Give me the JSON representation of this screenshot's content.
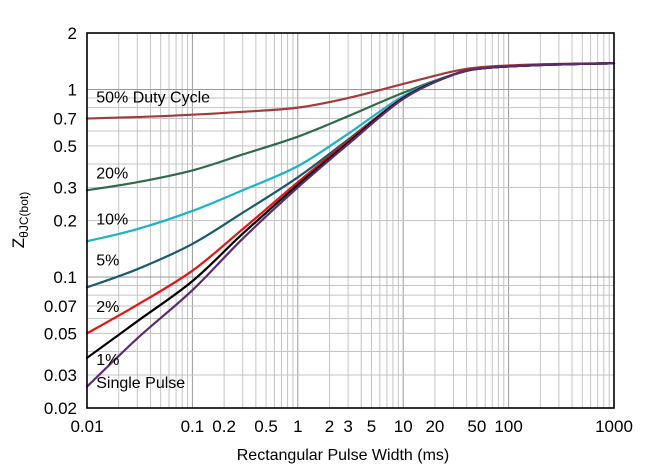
{
  "chart_data": {
    "type": "line",
    "title": "",
    "xlabel": "Rectangular Pulse Width (ms)",
    "ylabel_main": "Z",
    "ylabel_sub": "θJC(bot)",
    "xscale": "log",
    "yscale": "log",
    "xlim": [
      0.01,
      1000
    ],
    "ylim": [
      0.02,
      2
    ],
    "grid": true,
    "x_tick_labels": [
      {
        "v": 0.01,
        "t": "0.01"
      },
      {
        "v": 0.1,
        "t": "0.1"
      },
      {
        "v": 0.2,
        "t": "0.2"
      },
      {
        "v": 0.5,
        "t": "0.5"
      },
      {
        "v": 1,
        "t": "1"
      },
      {
        "v": 2,
        "t": "2"
      },
      {
        "v": 3,
        "t": "3"
      },
      {
        "v": 5,
        "t": "5"
      },
      {
        "v": 10,
        "t": "10"
      },
      {
        "v": 20,
        "t": "20"
      },
      {
        "v": 50,
        "t": "50"
      },
      {
        "v": 100,
        "t": "100"
      },
      {
        "v": 1000,
        "t": "1000"
      }
    ],
    "y_tick_labels": [
      {
        "v": 0.02,
        "t": "0.02"
      },
      {
        "v": 0.03,
        "t": "0.03"
      },
      {
        "v": 0.05,
        "t": "0.05"
      },
      {
        "v": 0.07,
        "t": "0.07"
      },
      {
        "v": 0.1,
        "t": "0.1"
      },
      {
        "v": 0.2,
        "t": "0.2"
      },
      {
        "v": 0.3,
        "t": "0.3"
      },
      {
        "v": 0.5,
        "t": "0.5"
      },
      {
        "v": 0.7,
        "t": "0.7"
      },
      {
        "v": 1,
        "t": "1"
      },
      {
        "v": 2,
        "t": "2"
      }
    ],
    "series": [
      {
        "name": "50% Duty Cycle",
        "color": "#a33b3b",
        "label": {
          "text": "50% Duty Cycle",
          "x": 0.0105,
          "y": 0.85
        },
        "points": [
          [
            0.01,
            0.7
          ],
          [
            0.05,
            0.72
          ],
          [
            0.3,
            0.76
          ],
          [
            1,
            0.8
          ],
          [
            3,
            0.9
          ],
          [
            10,
            1.07
          ],
          [
            30,
            1.25
          ],
          [
            60,
            1.32
          ],
          [
            200,
            1.36
          ],
          [
            1000,
            1.38
          ]
        ]
      },
      {
        "name": "20%",
        "color": "#2f6b4a",
        "label": {
          "text": "20%",
          "x": 0.0105,
          "y": 0.335
        },
        "points": [
          [
            0.01,
            0.29
          ],
          [
            0.03,
            0.32
          ],
          [
            0.1,
            0.37
          ],
          [
            0.3,
            0.45
          ],
          [
            1,
            0.56
          ],
          [
            3,
            0.72
          ],
          [
            10,
            0.96
          ],
          [
            30,
            1.2
          ],
          [
            60,
            1.3
          ],
          [
            200,
            1.35
          ],
          [
            1000,
            1.38
          ]
        ]
      },
      {
        "name": "10%",
        "color": "#1ab3c8",
        "label": {
          "text": "10%",
          "x": 0.0105,
          "y": 0.19
        },
        "points": [
          [
            0.01,
            0.155
          ],
          [
            0.03,
            0.18
          ],
          [
            0.1,
            0.225
          ],
          [
            0.3,
            0.29
          ],
          [
            1,
            0.39
          ],
          [
            3,
            0.58
          ],
          [
            10,
            0.92
          ],
          [
            30,
            1.2
          ],
          [
            60,
            1.3
          ],
          [
            200,
            1.35
          ],
          [
            1000,
            1.38
          ]
        ]
      },
      {
        "name": "5%",
        "color": "#1a5a6e",
        "label": {
          "text": "5%",
          "x": 0.0105,
          "y": 0.115
        },
        "points": [
          [
            0.01,
            0.088
          ],
          [
            0.03,
            0.11
          ],
          [
            0.1,
            0.15
          ],
          [
            0.3,
            0.22
          ],
          [
            1,
            0.34
          ],
          [
            3,
            0.54
          ],
          [
            10,
            0.9
          ],
          [
            30,
            1.2
          ],
          [
            60,
            1.3
          ],
          [
            200,
            1.35
          ],
          [
            1000,
            1.38
          ]
        ]
      },
      {
        "name": "2%",
        "color": "#ee1111",
        "label": {
          "text": "2%",
          "x": 0.0105,
          "y": 0.065
        },
        "points": [
          [
            0.01,
            0.05
          ],
          [
            0.03,
            0.071
          ],
          [
            0.1,
            0.108
          ],
          [
            0.3,
            0.18
          ],
          [
            1,
            0.32
          ],
          [
            3,
            0.53
          ],
          [
            10,
            0.9
          ],
          [
            30,
            1.2
          ],
          [
            60,
            1.3
          ],
          [
            200,
            1.35
          ],
          [
            1000,
            1.38
          ]
        ]
      },
      {
        "name": "1%",
        "color": "#000000",
        "label": {
          "text": "1%",
          "x": 0.0105,
          "y": 0.034
        },
        "points": [
          [
            0.01,
            0.037
          ],
          [
            0.03,
            0.058
          ],
          [
            0.1,
            0.095
          ],
          [
            0.3,
            0.17
          ],
          [
            1,
            0.31
          ],
          [
            3,
            0.52
          ],
          [
            10,
            0.9
          ],
          [
            30,
            1.2
          ],
          [
            60,
            1.3
          ],
          [
            200,
            1.35
          ],
          [
            1000,
            1.38
          ]
        ]
      },
      {
        "name": "Single Pulse",
        "color": "#5b2d6e",
        "label": {
          "text": "Single Pulse",
          "x": 0.0105,
          "y": 0.0255
        },
        "points": [
          [
            0.01,
            0.026
          ],
          [
            0.03,
            0.047
          ],
          [
            0.1,
            0.085
          ],
          [
            0.3,
            0.16
          ],
          [
            1,
            0.3
          ],
          [
            3,
            0.51
          ],
          [
            10,
            0.89
          ],
          [
            30,
            1.2
          ],
          [
            60,
            1.3
          ],
          [
            200,
            1.35
          ],
          [
            1000,
            1.38
          ]
        ]
      }
    ]
  }
}
